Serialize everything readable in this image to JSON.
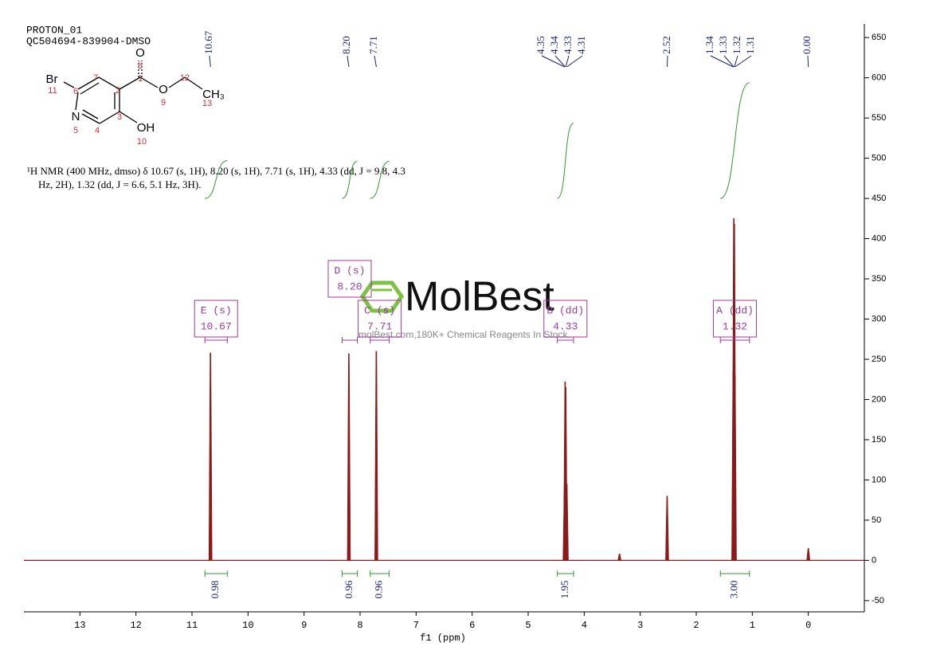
{
  "chart_data": {
    "type": "nmr",
    "title": "PROTON_01",
    "subtitle": "QC504694-839904-DMSO",
    "x_label": "f1 (ppm)",
    "annotations": [
      "¹H NMR (400 MHz, dmso) δ 10.67 (s, 1H), 8.20 (s, 1H), 7.71 (s, 1H), 4.33 (dd, J = 9.8, 4.3",
      "Hz, 2H), 1.32 (dd, J = 6.6, 5.1 Hz, 3H)."
    ],
    "xlim": [
      14,
      -1
    ],
    "ylim": [
      -64,
      667
    ],
    "xticks": [
      13,
      12,
      11,
      10,
      9,
      8,
      7,
      6,
      5,
      4,
      3,
      2,
      1,
      0
    ],
    "yticks": [
      -50,
      0,
      50,
      100,
      150,
      200,
      250,
      300,
      350,
      400,
      450,
      500,
      550,
      600,
      650
    ],
    "color": "#8b1a1a",
    "x": [
      10.67,
      8.2,
      7.71,
      4.35,
      4.34,
      4.33,
      4.31,
      3.37,
      2.52,
      1.34,
      1.33,
      1.32,
      1.31,
      0
    ],
    "values": [
      258,
      257,
      260,
      95,
      222,
      215,
      95,
      8,
      80,
      235,
      425,
      418,
      230,
      15
    ],
    "peak_labels": [
      {
        "value": 10.67,
        "label": "10.67"
      },
      {
        "value": 8.2,
        "label": "8.20"
      },
      {
        "value": 7.71,
        "label": "7.71"
      },
      {
        "value": 4.35,
        "label": "4.35"
      },
      {
        "value": 4.34,
        "label": "4.34"
      },
      {
        "value": 4.33,
        "label": "4.33"
      },
      {
        "value": 4.31,
        "label": "4.31"
      },
      {
        "value": 2.52,
        "label": "2.52"
      },
      {
        "value": 1.34,
        "label": "1.34"
      },
      {
        "value": 1.33,
        "label": "1.33"
      },
      {
        "value": 1.32,
        "label": "1.32"
      },
      {
        "value": 1.31,
        "label": "1.31"
      },
      {
        "value": 0,
        "label": "0.00"
      }
    ],
    "multiplets": [
      {
        "label": "E (s)",
        "shift": "10.67",
        "range": [
          10.77,
          10.37
        ]
      },
      {
        "label": "D (s)",
        "shift": "8.20",
        "range": [
          8.32,
          8.05
        ]
      },
      {
        "label": "C (s)",
        "shift": "7.71",
        "range": [
          7.82,
          7.48
        ]
      },
      {
        "label": "B (dd)",
        "shift": "4.33",
        "range": [
          4.48,
          4.19
        ]
      },
      {
        "label": "A (dd)",
        "shift": "1.32",
        "range": [
          1.57,
          1.05
        ]
      }
    ],
    "integrals": {
      "values": [
        0.98,
        0.96,
        0.96,
        1.95,
        {
          "value": 3,
          "label": "3.00"
        }
      ],
      "ranges": [
        [
          10.77,
          10.37
        ],
        [
          8.32,
          8.05
        ],
        [
          7.82,
          7.48
        ],
        [
          4.48,
          4.19
        ],
        [
          1.57,
          1.05
        ]
      ]
    },
    "structure": [
      "O",
      "8",
      "Br",
      "11",
      "7",
      "6",
      "2",
      "1",
      "O",
      "9",
      "12",
      "CH₃",
      "13",
      "N",
      "5",
      "4",
      "3",
      "OH",
      "10"
    ],
    "watermark": {
      "brand": "MolBest",
      "tagline": "molBest.com,180K+ Chemical Reagents In Stock."
    }
  }
}
